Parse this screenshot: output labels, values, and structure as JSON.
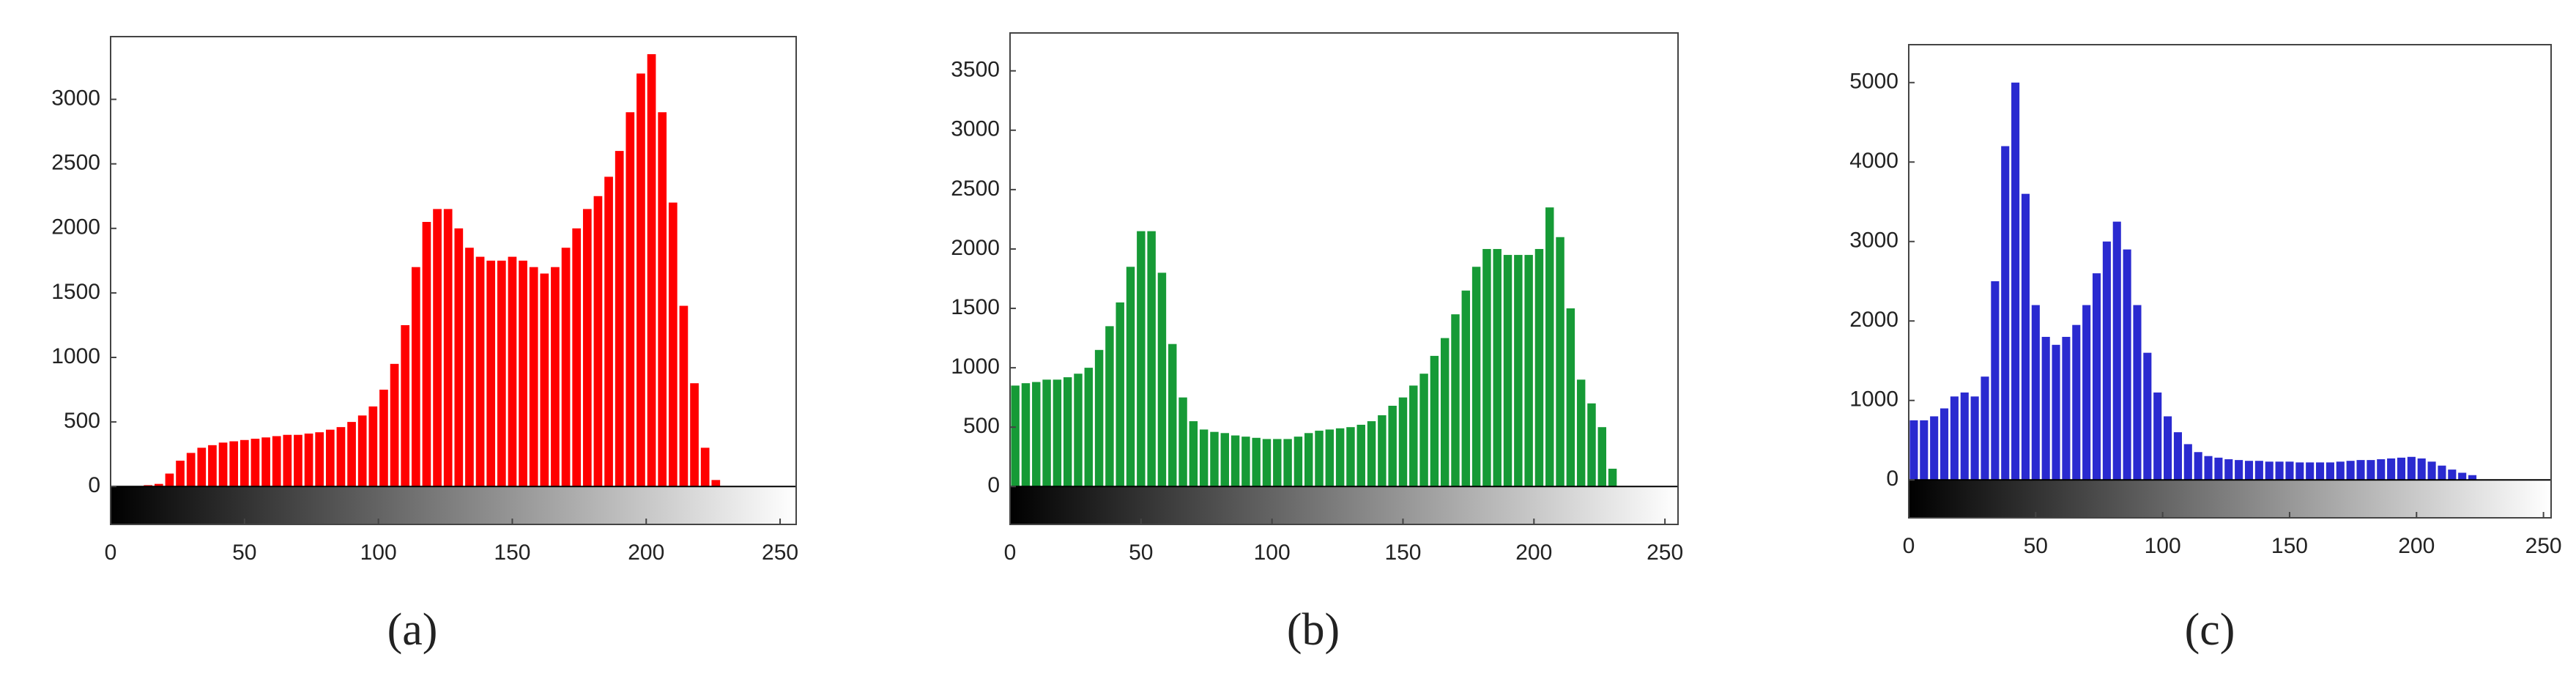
{
  "chart_data": [
    {
      "type": "histogram",
      "caption": "(a)",
      "color": "#ff0000",
      "bins": [
        0,
        4,
        8,
        12,
        16,
        20,
        24,
        28,
        32,
        36,
        40,
        44,
        48,
        52,
        56,
        60,
        64,
        68,
        72,
        76,
        80,
        84,
        88,
        92,
        96,
        100,
        104,
        108,
        112,
        116,
        120,
        124,
        128,
        132,
        136,
        140,
        144,
        148,
        152,
        156,
        160,
        164,
        168,
        172,
        176,
        180,
        184,
        188,
        192,
        196,
        200,
        204,
        208,
        212,
        216,
        220,
        224,
        228,
        232,
        236,
        240,
        244,
        248,
        252,
        256
      ],
      "counts": [
        0,
        0,
        0,
        10,
        20,
        100,
        200,
        260,
        300,
        320,
        340,
        350,
        360,
        370,
        380,
        390,
        400,
        400,
        410,
        420,
        440,
        460,
        500,
        550,
        620,
        750,
        950,
        1250,
        1700,
        2050,
        2150,
        2150,
        2000,
        1850,
        1780,
        1750,
        1750,
        1780,
        1750,
        1700,
        1650,
        1700,
        1850,
        2000,
        2150,
        2250,
        2400,
        2600,
        2900,
        3200,
        3350,
        2900,
        2200,
        1400,
        800,
        300,
        50,
        0,
        0,
        0,
        0,
        0,
        0,
        0
      ],
      "xlim": [
        0,
        256
      ],
      "ylim": [
        -294,
        3486
      ],
      "xticks": [
        0,
        50,
        100,
        150,
        200,
        250
      ],
      "yticks": [
        0,
        500,
        1000,
        1500,
        2000,
        2500,
        3000
      ]
    },
    {
      "type": "histogram",
      "caption": "(b)",
      "color": "#169a36",
      "bins": [
        0,
        4,
        8,
        12,
        16,
        20,
        24,
        28,
        32,
        36,
        40,
        44,
        48,
        52,
        56,
        60,
        64,
        68,
        72,
        76,
        80,
        84,
        88,
        92,
        96,
        100,
        104,
        108,
        112,
        116,
        120,
        124,
        128,
        132,
        136,
        140,
        144,
        148,
        152,
        156,
        160,
        164,
        168,
        172,
        176,
        180,
        184,
        188,
        192,
        196,
        200,
        204,
        208,
        212,
        216,
        220,
        224,
        228,
        232,
        236,
        240,
        244,
        248,
        252,
        256
      ],
      "counts": [
        850,
        870,
        880,
        900,
        900,
        920,
        950,
        1000,
        1150,
        1350,
        1550,
        1850,
        2150,
        2150,
        1800,
        1200,
        750,
        550,
        480,
        460,
        450,
        430,
        420,
        410,
        400,
        400,
        400,
        420,
        450,
        470,
        480,
        490,
        500,
        520,
        550,
        600,
        680,
        750,
        850,
        950,
        1100,
        1250,
        1450,
        1650,
        1850,
        2000,
        2000,
        1950,
        1950,
        1950,
        2000,
        2350,
        2100,
        1500,
        900,
        700,
        500,
        150,
        0,
        0,
        0,
        0,
        0,
        0
      ],
      "xlim": [
        0,
        255
      ],
      "ylim": [
        -319,
        3819
      ],
      "xticks": [
        0,
        50,
        100,
        150,
        200,
        250
      ],
      "yticks": [
        0,
        500,
        1000,
        1500,
        2000,
        2500,
        3000,
        3500
      ]
    },
    {
      "type": "histogram",
      "caption": "(c)",
      "color": "#2a2ad0",
      "bins": [
        0,
        4,
        8,
        12,
        16,
        20,
        24,
        28,
        32,
        36,
        40,
        44,
        48,
        52,
        56,
        60,
        64,
        68,
        72,
        76,
        80,
        84,
        88,
        92,
        96,
        100,
        104,
        108,
        112,
        116,
        120,
        124,
        128,
        132,
        136,
        140,
        144,
        148,
        152,
        156,
        160,
        164,
        168,
        172,
        176,
        180,
        184,
        188,
        192,
        196,
        200,
        204,
        208,
        212,
        216,
        220,
        224,
        228,
        232,
        236,
        240,
        244,
        248,
        252,
        256
      ],
      "counts": [
        750,
        750,
        800,
        900,
        1050,
        1100,
        1050,
        1300,
        2500,
        4200,
        5000,
        3600,
        2200,
        1800,
        1700,
        1800,
        1950,
        2200,
        2600,
        3000,
        3250,
        2900,
        2200,
        1600,
        1100,
        800,
        600,
        450,
        350,
        300,
        280,
        260,
        250,
        240,
        240,
        230,
        230,
        230,
        220,
        220,
        220,
        220,
        230,
        240,
        250,
        250,
        260,
        270,
        280,
        290,
        270,
        230,
        180,
        130,
        90,
        60,
        0,
        0,
        0,
        0,
        0,
        0,
        0,
        0
      ],
      "xlim": [
        0,
        253
      ],
      "ylim": [
        -477,
        5477
      ],
      "xticks": [
        0,
        50,
        100,
        150,
        200,
        250
      ],
      "yticks": [
        0,
        1000,
        2000,
        3000,
        4000,
        5000
      ]
    }
  ]
}
